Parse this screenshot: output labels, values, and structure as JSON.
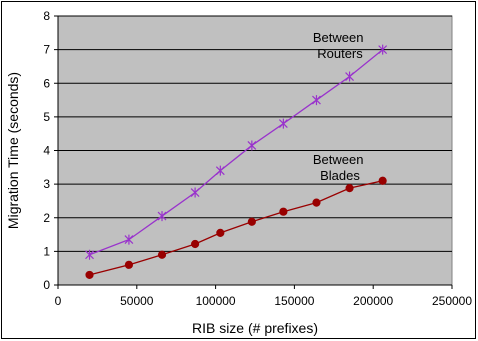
{
  "chart_data": {
    "type": "line",
    "xlabel": "RIB size (# prefixes)",
    "ylabel": "Migration Time (seconds)",
    "xlim": [
      0,
      250000
    ],
    "ylim": [
      0,
      8
    ],
    "x_ticks": [
      0,
      50000,
      100000,
      150000,
      200000,
      250000
    ],
    "y_ticks": [
      0,
      1,
      2,
      3,
      4,
      5,
      6,
      7,
      8
    ],
    "grid": "horizontal",
    "plot_background": "#c0c0c0",
    "series": [
      {
        "name": "Between Routers",
        "color": "#9933cc",
        "marker": "star",
        "x": [
          20000,
          45000,
          66000,
          87000,
          103000,
          123000,
          143000,
          164000,
          185000,
          206000
        ],
        "y": [
          0.9,
          1.35,
          2.05,
          2.75,
          3.4,
          4.15,
          4.8,
          5.5,
          6.2,
          7.0
        ]
      },
      {
        "name": "Between Blades",
        "color": "#990000",
        "marker": "circle",
        "x": [
          20000,
          45000,
          66000,
          87000,
          103000,
          123000,
          143000,
          164000,
          185000,
          206000
        ],
        "y": [
          0.3,
          0.6,
          0.9,
          1.22,
          1.55,
          1.88,
          2.18,
          2.45,
          2.88,
          3.1
        ]
      }
    ],
    "annotations": [
      {
        "series": 0,
        "lines": [
          "Between",
          "Routers"
        ]
      },
      {
        "series": 1,
        "lines": [
          "Between",
          "Blades"
        ]
      }
    ]
  }
}
